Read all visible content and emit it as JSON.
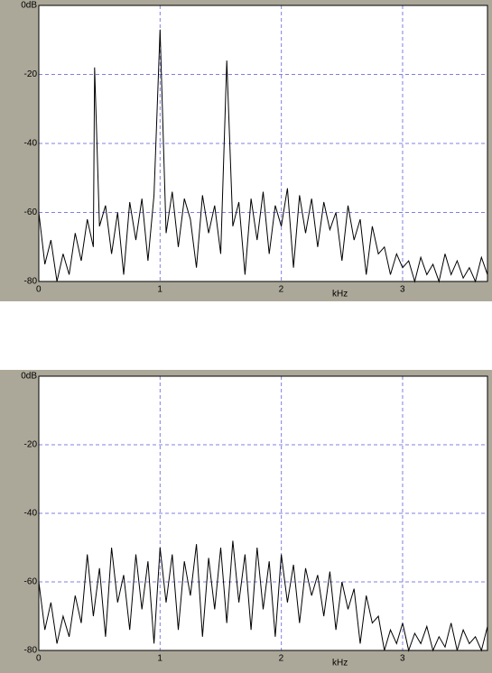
{
  "chart_data": [
    {
      "type": "line",
      "xlabel": "kHz",
      "color": "#000000",
      "grid": true,
      "xlim": [
        0,
        3.7
      ],
      "ylim": [
        -80,
        0
      ],
      "xticks": [
        0,
        1,
        2,
        3
      ],
      "yticks": [
        {
          "value": 0,
          "label": "0dB"
        },
        -20,
        -40,
        -60,
        -80
      ],
      "x": [
        0,
        0.05,
        0.1,
        0.15,
        0.2,
        0.25,
        0.3,
        0.35,
        0.4,
        0.45,
        0.46,
        0.5,
        0.55,
        0.6,
        0.65,
        0.7,
        0.75,
        0.8,
        0.85,
        0.9,
        0.95,
        1.0,
        1.05,
        1.1,
        1.15,
        1.2,
        1.25,
        1.3,
        1.35,
        1.4,
        1.45,
        1.5,
        1.55,
        1.6,
        1.65,
        1.7,
        1.75,
        1.8,
        1.85,
        1.9,
        1.95,
        2.0,
        2.05,
        2.1,
        2.15,
        2.2,
        2.25,
        2.3,
        2.35,
        2.4,
        2.45,
        2.5,
        2.55,
        2.6,
        2.65,
        2.7,
        2.75,
        2.8,
        2.85,
        2.9,
        2.95,
        3.0,
        3.05,
        3.1,
        3.15,
        3.2,
        3.25,
        3.3,
        3.35,
        3.4,
        3.45,
        3.5,
        3.55,
        3.6,
        3.65,
        3.7
      ],
      "values": [
        -60,
        -75,
        -68,
        -80,
        -72,
        -78,
        -66,
        -74,
        -62,
        -70,
        -18,
        -64,
        -58,
        -72,
        -60,
        -78,
        -57,
        -68,
        -56,
        -74,
        -55,
        -7,
        -66,
        -54,
        -70,
        -56,
        -62,
        -76,
        -55,
        -66,
        -58,
        -72,
        -16,
        -64,
        -57,
        -78,
        -56,
        -68,
        -54,
        -72,
        -58,
        -64,
        -53,
        -76,
        -55,
        -66,
        -56,
        -70,
        -57,
        -65,
        -60,
        -74,
        -58,
        -68,
        -62,
        -78,
        -64,
        -72,
        -70,
        -78,
        -72,
        -76,
        -74,
        -80,
        -73,
        -78,
        -75,
        -80,
        -72,
        -78,
        -74,
        -79,
        -76,
        -80,
        -73,
        -78
      ]
    },
    {
      "type": "line",
      "xlabel": "kHz",
      "color": "#000000",
      "grid": true,
      "xlim": [
        0,
        3.7
      ],
      "ylim": [
        -80,
        0
      ],
      "xticks": [
        0,
        1,
        2,
        3
      ],
      "yticks": [
        {
          "value": 0,
          "label": "0dB"
        },
        -20,
        -40,
        -60,
        -80
      ],
      "x": [
        0,
        0.05,
        0.1,
        0.15,
        0.2,
        0.25,
        0.3,
        0.35,
        0.4,
        0.45,
        0.5,
        0.55,
        0.6,
        0.65,
        0.7,
        0.75,
        0.8,
        0.85,
        0.9,
        0.95,
        1.0,
        1.05,
        1.1,
        1.15,
        1.2,
        1.25,
        1.3,
        1.35,
        1.4,
        1.45,
        1.5,
        1.55,
        1.6,
        1.65,
        1.7,
        1.75,
        1.8,
        1.85,
        1.9,
        1.95,
        2.0,
        2.05,
        2.1,
        2.15,
        2.2,
        2.25,
        2.3,
        2.35,
        2.4,
        2.45,
        2.5,
        2.55,
        2.6,
        2.65,
        2.7,
        2.75,
        2.8,
        2.85,
        2.9,
        2.95,
        3.0,
        3.05,
        3.1,
        3.15,
        3.2,
        3.25,
        3.3,
        3.35,
        3.4,
        3.45,
        3.5,
        3.55,
        3.6,
        3.65,
        3.7
      ],
      "values": [
        -60,
        -74,
        -66,
        -78,
        -70,
        -76,
        -64,
        -72,
        -52,
        -70,
        -56,
        -76,
        -50,
        -66,
        -58,
        -74,
        -52,
        -68,
        -54,
        -78,
        -50,
        -66,
        -52,
        -74,
        -54,
        -64,
        -49,
        -76,
        -53,
        -68,
        -50,
        -72,
        -48,
        -66,
        -52,
        -74,
        -50,
        -68,
        -54,
        -76,
        -52,
        -66,
        -55,
        -72,
        -56,
        -64,
        -58,
        -70,
        -57,
        -74,
        -60,
        -68,
        -62,
        -78,
        -64,
        -72,
        -70,
        -80,
        -74,
        -78,
        -72,
        -80,
        -75,
        -78,
        -73,
        -80,
        -76,
        -79,
        -72,
        -80,
        -74,
        -78,
        -76,
        -80,
        -73
      ]
    }
  ]
}
